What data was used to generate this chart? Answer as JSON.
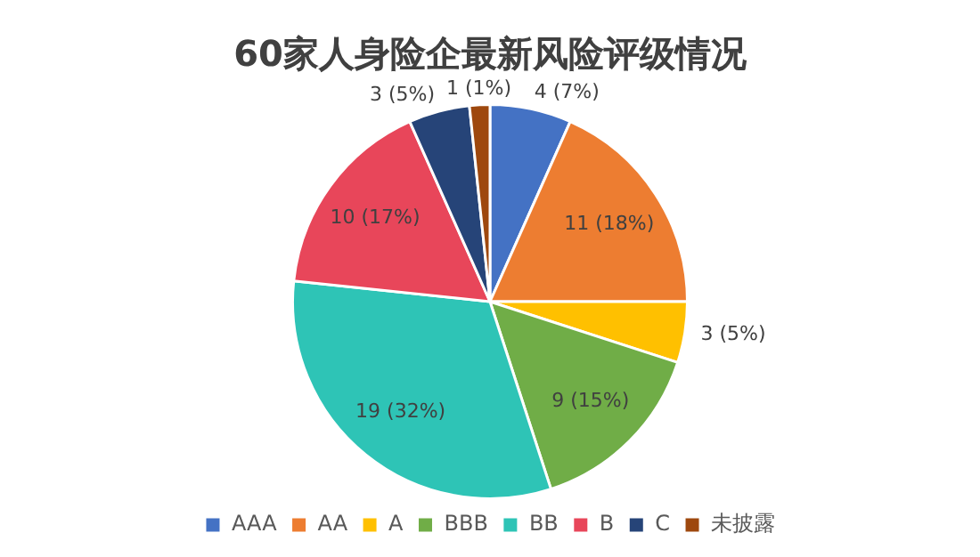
{
  "chart_data": {
    "type": "pie",
    "title": "60家人身险企最新风险评级情况",
    "categories": [
      "AAA",
      "AA",
      "A",
      "BBB",
      "BB",
      "B",
      "C",
      "未披露"
    ],
    "values": [
      4,
      11,
      3,
      9,
      19,
      10,
      3,
      1
    ],
    "value_labels": [
      "4 (7%)",
      "11 (18%)",
      "3 (5%)",
      "9 (15%)",
      "19 (32%)",
      "10 (17%)",
      "3 (5%)",
      "1 (1%)"
    ],
    "colors": [
      "#4472c4",
      "#ed7d31",
      "#ffc000",
      "#70ad47",
      "#2ec4b6",
      "#e8465a",
      "#264478",
      "#9e480e"
    ],
    "legend": "bottom"
  }
}
